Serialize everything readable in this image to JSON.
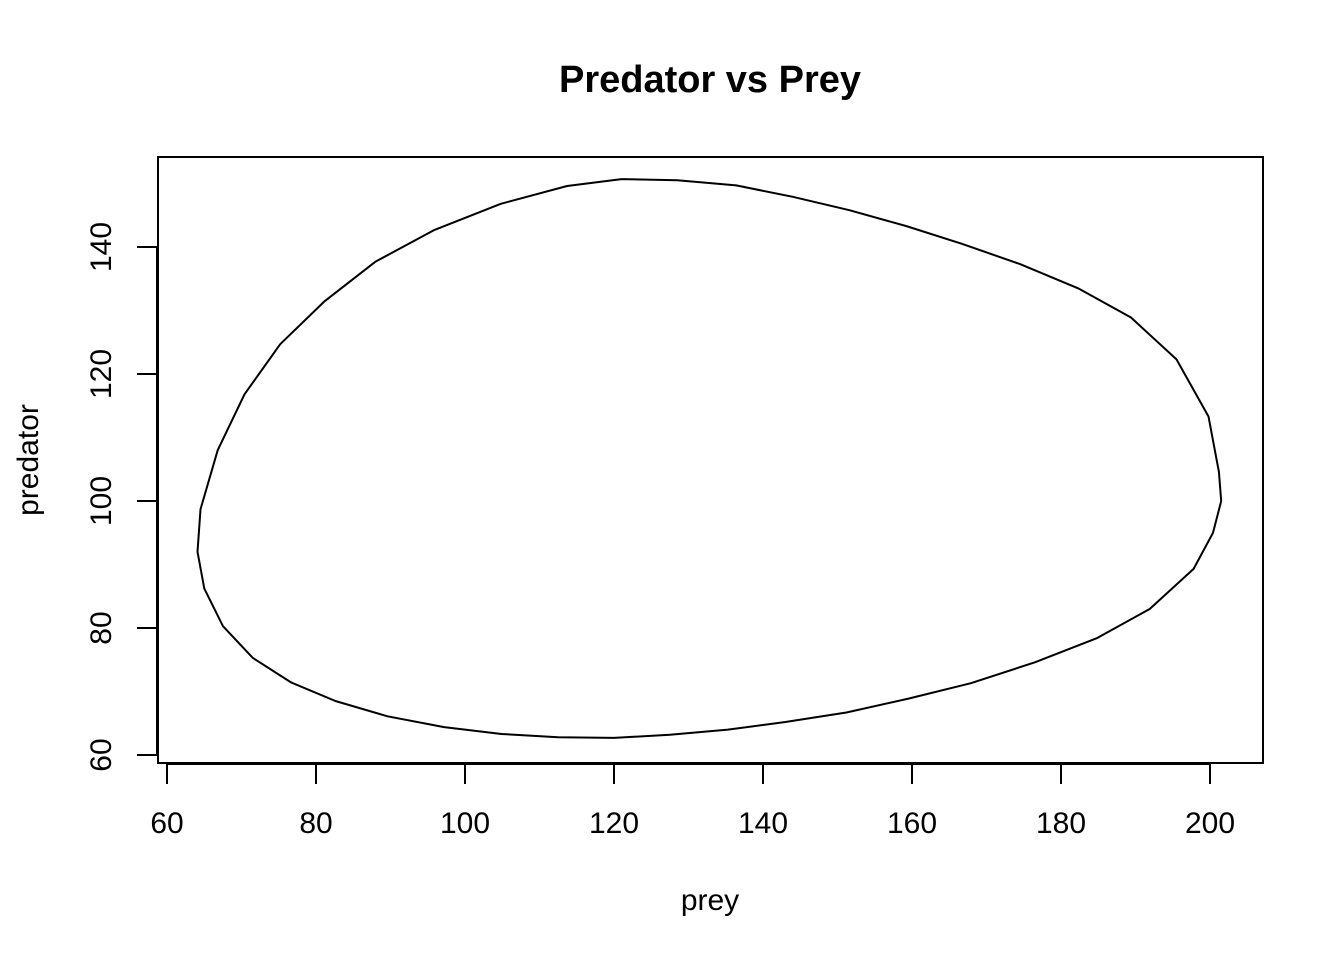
{
  "chart_data": {
    "type": "line",
    "title": "Predator vs Prey",
    "xlabel": "prey",
    "ylabel": "predator",
    "xlim": [
      58.6,
      207.3
    ],
    "ylim": [
      58.6,
      150.0
    ],
    "xticks": [
      60,
      80,
      100,
      120,
      140,
      160,
      180,
      200
    ],
    "yticks": [
      60,
      80,
      100,
      120,
      140
    ],
    "xtick_labels": [
      "60",
      "80",
      "100",
      "120",
      "140",
      "160",
      "180",
      "200"
    ],
    "ytick_labels": [
      "60",
      "80",
      "100",
      "120",
      "140"
    ],
    "grid": false,
    "series": [
      {
        "x": [
          201.5,
          200.4,
          197.8,
          191.9,
          184.8,
          176.5,
          167.9,
          159.6,
          151.2,
          143.0,
          135.3,
          127.5,
          120.0,
          112.5,
          104.9,
          97.2,
          89.6,
          82.6,
          76.7,
          71.5,
          67.5,
          65.0,
          64.1,
          64.5,
          66.8,
          70.4,
          75.2,
          81.1,
          88.0,
          95.9,
          104.8,
          113.7,
          121.0,
          128.5,
          136.4,
          144.0,
          151.6,
          159.2,
          166.7,
          174.5,
          182.3,
          189.4,
          195.5,
          199.8,
          201.2,
          201.5
        ],
        "y": [
          100.0,
          95.0,
          89.3,
          83.0,
          78.4,
          74.6,
          71.3,
          68.9,
          66.7,
          65.2,
          64.0,
          63.2,
          62.7,
          62.8,
          63.3,
          64.4,
          66.1,
          68.5,
          71.4,
          75.3,
          80.3,
          86.2,
          92.0,
          98.7,
          108.0,
          116.8,
          124.7,
          131.4,
          137.7,
          142.7,
          146.8,
          149.6,
          150.7,
          150.5,
          149.7,
          147.9,
          145.8,
          143.3,
          140.5,
          137.3,
          133.5,
          128.9,
          122.3,
          113.3,
          104.6,
          100.0
        ]
      }
    ]
  }
}
